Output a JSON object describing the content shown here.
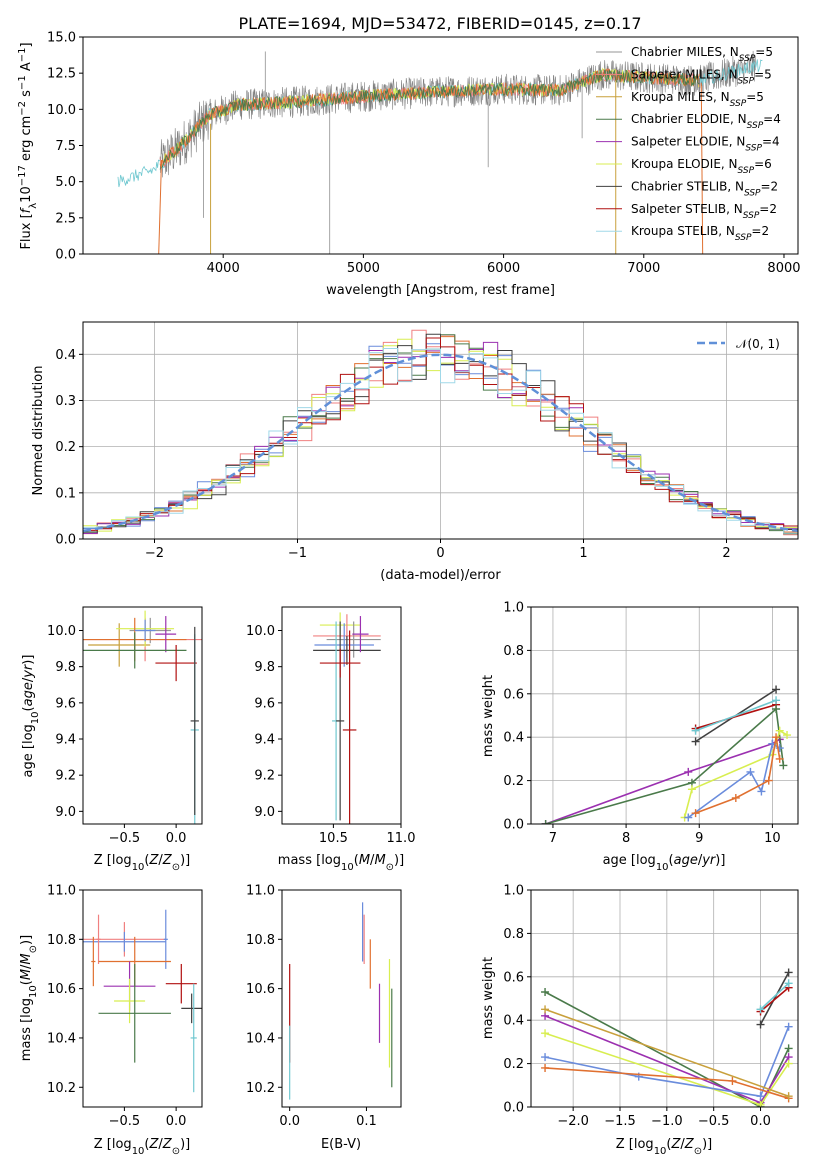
{
  "figure_title": "PLATE=1694, MJD=53472, FIBERID=0145, z=0.17",
  "colors": {
    "Chabrier MILES": "#969696",
    "Salpeter MILES": "#f08080",
    "Kroupa MILES": "#c8a03c",
    "Chabrier ELODIE": "#4a7a4a",
    "Salpeter ELODIE": "#9b30b0",
    "Kroupa ELODIE": "#d8ee50",
    "Chabrier STELIB": "#404040",
    "Salpeter STELIB": "#b01010",
    "Kroupa STELIB": "#a0d8e8",
    "extra_blue": "#6a8cdc",
    "extra_orange": "#e07030",
    "gauss": "#6090d8",
    "data": "#808080",
    "cyan": "#70c8d0"
  },
  "chart_data": [
    {
      "type": "line",
      "xlabel": "wavelength [Angstrom, rest frame]",
      "ylabel": "Flux [f_λ10^-17 erg cm^-2 s^-1 A^-1]",
      "xlim": [
        3000,
        8100
      ],
      "ylim": [
        0,
        15.0
      ],
      "xticks": [
        "4000",
        "5000",
        "6000",
        "7000",
        "8000"
      ],
      "yticks": [
        "0.0",
        "2.5",
        "5.0",
        "7.5",
        "10.0",
        "12.5",
        "15.0"
      ],
      "legend_position": "right",
      "legend": [
        {
          "name": "Chabrier MILES, N",
          "sub": "SSP",
          "val": "=5"
        },
        {
          "name": "Salpeter MILES, N",
          "sub": "SSP",
          "val": "=5"
        },
        {
          "name": "Kroupa MILES, N",
          "sub": "SSP",
          "val": "=5"
        },
        {
          "name": "Chabrier ELODIE, N",
          "sub": "SSP",
          "val": "=4"
        },
        {
          "name": "Salpeter ELODIE, N",
          "sub": "SSP",
          "val": "=4"
        },
        {
          "name": "Kroupa ELODIE, N",
          "sub": "SSP",
          "val": "=6"
        },
        {
          "name": "Chabrier STELIB, N",
          "sub": "SSP",
          "val": "=2"
        },
        {
          "name": "Salpeter STELIB, N",
          "sub": "SSP",
          "val": "=2"
        },
        {
          "name": "Kroupa STELIB, N",
          "sub": "SSP",
          "val": "=2"
        }
      ],
      "continuum": [
        [
          3250,
          5.0
        ],
        [
          3500,
          5.8
        ],
        [
          3700,
          7.5
        ],
        [
          3900,
          9.6
        ],
        [
          4100,
          10.3
        ],
        [
          4500,
          10.5
        ],
        [
          5000,
          10.9
        ],
        [
          5500,
          11.2
        ],
        [
          6000,
          11.4
        ],
        [
          6400,
          11.3
        ],
        [
          6700,
          12.4
        ],
        [
          7000,
          12.2
        ],
        [
          7400,
          12.0
        ],
        [
          7800,
          13.0
        ]
      ]
    },
    {
      "type": "histogram",
      "xlabel": "(data-model)/error",
      "ylabel": "Normed distribution",
      "xlim": [
        -2.5,
        2.5
      ],
      "ylim": [
        0,
        0.47
      ],
      "xticks": [
        "−2",
        "−1",
        "0",
        "1",
        "2"
      ],
      "yticks": [
        "0.0",
        "0.1",
        "0.2",
        "0.3",
        "0.4"
      ],
      "legend": "N(0,1)",
      "legend_position": "top-right",
      "grid": true
    },
    {
      "type": "scatter",
      "xlabel": "Z [log10(Z/Z⊙)]",
      "ylabel": "age [log10(age/yr)]",
      "xlim": [
        -0.9,
        0.25
      ],
      "ylim": [
        8.93,
        10.13
      ],
      "xticks": [
        "−0.5",
        "0.0"
      ],
      "yticks": [
        "9.0",
        "9.2",
        "9.4",
        "9.6",
        "9.8",
        "10.0"
      ],
      "points": [
        {
          "x": -0.25,
          "y": 10.0,
          "xerr": 0.2,
          "yerr": 0.07,
          "c": "Chabrier MILES"
        },
        {
          "x": -0.3,
          "y": 9.95,
          "xerr": 0.6,
          "yerr": 0.12,
          "c": "Salpeter MILES"
        },
        {
          "x": -0.55,
          "y": 9.92,
          "xerr": 0.3,
          "yerr": 0.12,
          "c": "Kroupa MILES"
        },
        {
          "x": -0.3,
          "y": 10.01,
          "xerr": 0.28,
          "yerr": 0.1,
          "c": "Kroupa ELODIE"
        },
        {
          "x": -0.4,
          "y": 9.95,
          "xerr": 0.5,
          "yerr": 0.12,
          "c": "extra_orange"
        },
        {
          "x": -0.1,
          "y": 9.98,
          "xerr": 0.1,
          "yerr": 0.1,
          "c": "Salpeter ELODIE"
        },
        {
          "x": -0.4,
          "y": 9.89,
          "xerr": 0.5,
          "yerr": 0.1,
          "c": "Chabrier ELODIE"
        },
        {
          "x": 0.0,
          "y": 9.82,
          "xerr": 0.2,
          "yerr": 0.1,
          "c": "Salpeter STELIB"
        },
        {
          "x": 0.18,
          "y": 9.45,
          "xerr": 0.04,
          "yerr": 0.53,
          "c": "cyan"
        },
        {
          "x": 0.18,
          "y": 9.5,
          "xerr": 0.04,
          "yerr": 0.52,
          "c": "Chabrier STELIB"
        },
        {
          "x": -0.3,
          "y": 10.0,
          "xerr": 0.1,
          "yerr": 0.06,
          "c": "extra_blue"
        }
      ]
    },
    {
      "type": "scatter",
      "xlabel": "mass [log10(M/M⊙)]",
      "ylabel": "",
      "xlim": [
        10.12,
        11.0
      ],
      "ylim": [
        8.93,
        10.13
      ],
      "xticks": [
        "10.5",
        "11.0"
      ],
      "yticks": [
        "9.0",
        "9.2",
        "9.4",
        "9.6",
        "9.8",
        "10.0"
      ],
      "points": [
        {
          "x": 10.55,
          "y": 10.03,
          "xerr": 0.15,
          "yerr": 0.07,
          "c": "Kroupa ELODIE"
        },
        {
          "x": 10.6,
          "y": 9.97,
          "xerr": 0.25,
          "yerr": 0.12,
          "c": "Salpeter MILES"
        },
        {
          "x": 10.65,
          "y": 9.95,
          "xerr": 0.2,
          "yerr": 0.1,
          "c": "Chabrier MILES"
        },
        {
          "x": 10.58,
          "y": 9.92,
          "xerr": 0.22,
          "yerr": 0.12,
          "c": "extra_blue"
        },
        {
          "x": 10.6,
          "y": 9.89,
          "xerr": 0.25,
          "yerr": 0.08,
          "c": "Chabrier STELIB"
        },
        {
          "x": 10.52,
          "y": 9.5,
          "xerr": 0.03,
          "yerr": 0.55,
          "c": "cyan"
        },
        {
          "x": 10.55,
          "y": 9.5,
          "xerr": 0.03,
          "yerr": 0.55,
          "c": "Chabrier STELIB"
        },
        {
          "x": 10.62,
          "y": 9.45,
          "xerr": 0.05,
          "yerr": 0.55,
          "c": "Salpeter STELIB"
        },
        {
          "x": 10.55,
          "y": 9.82,
          "xerr": 0.15,
          "yerr": 0.08,
          "c": "Salpeter STELIB"
        },
        {
          "x": 10.7,
          "y": 9.98,
          "xerr": 0.06,
          "yerr": 0.1,
          "c": "Salpeter ELODIE"
        }
      ]
    },
    {
      "type": "line",
      "xlabel": "age [log10(age/yr)]",
      "ylabel": "mass weight",
      "xlim": [
        6.7,
        10.35
      ],
      "ylim": [
        0,
        1.0
      ],
      "xticks": [
        "7",
        "8",
        "9",
        "10"
      ],
      "yticks": [
        "0.0",
        "0.2",
        "0.4",
        "0.6",
        "0.8",
        "1.0"
      ],
      "grid": true,
      "series": [
        {
          "c": "Chabrier STELIB",
          "x": [
            8.95,
            10.05
          ],
          "y": [
            0.38,
            0.62
          ]
        },
        {
          "c": "Salpeter STELIB",
          "x": [
            8.95,
            10.05
          ],
          "y": [
            0.44,
            0.55
          ]
        },
        {
          "c": "cyan",
          "x": [
            8.95,
            10.05
          ],
          "y": [
            0.43,
            0.57
          ]
        },
        {
          "c": "Salpeter ELODIE",
          "x": [
            6.9,
            8.85,
            10.0,
            10.1
          ],
          "y": [
            0.0,
            0.24,
            0.37,
            0.39
          ]
        },
        {
          "c": "Chabrier ELODIE",
          "x": [
            6.9,
            8.9,
            10.05,
            10.15
          ],
          "y": [
            0.0,
            0.19,
            0.53,
            0.27
          ]
        },
        {
          "c": "Kroupa ELODIE",
          "x": [
            8.8,
            8.9,
            10.0,
            10.1,
            10.2
          ],
          "y": [
            0.03,
            0.16,
            0.32,
            0.43,
            0.41
          ]
        },
        {
          "c": "extra_blue",
          "x": [
            8.85,
            9.7,
            9.85,
            10.0,
            10.1
          ],
          "y": [
            0.03,
            0.24,
            0.15,
            0.37,
            0.35
          ]
        },
        {
          "c": "extra_orange",
          "x": [
            8.95,
            9.5,
            9.95,
            10.05,
            10.1
          ],
          "y": [
            0.05,
            0.12,
            0.2,
            0.4,
            0.3
          ]
        }
      ]
    },
    {
      "type": "scatter",
      "xlabel": "Z [log10(Z/Z⊙)]",
      "ylabel": "mass [log10(M/M⊙)]",
      "xlim": [
        -0.9,
        0.25
      ],
      "ylim": [
        10.12,
        11.0
      ],
      "xticks": [
        "−0.5",
        "0.0"
      ],
      "yticks": [
        "10.2",
        "10.4",
        "10.6",
        "10.8",
        "11.0"
      ],
      "points": [
        {
          "x": -0.5,
          "y": 10.8,
          "xerr": 0.4,
          "yerr": 0.07,
          "c": "Salpeter MILES"
        },
        {
          "x": -0.5,
          "y": 10.79,
          "xerr": 0.4,
          "yerr": 0.04,
          "c": "extra_blue"
        },
        {
          "x": -0.1,
          "y": 10.8,
          "xerr": 0.02,
          "yerr": 0.12,
          "c": "extra_blue"
        },
        {
          "x": -0.75,
          "y": 10.8,
          "xerr": 0.02,
          "yerr": 0.1,
          "c": "Salpeter MILES"
        },
        {
          "x": -0.8,
          "y": 10.71,
          "xerr": 0.02,
          "yerr": 0.1,
          "c": "extra_orange"
        },
        {
          "x": -0.4,
          "y": 10.71,
          "xerr": 0.35,
          "yerr": 0.1,
          "c": "extra_orange"
        },
        {
          "x": -0.45,
          "y": 10.61,
          "xerr": 0.25,
          "yerr": 0.1,
          "c": "Salpeter ELODIE"
        },
        {
          "x": -0.45,
          "y": 10.55,
          "xerr": 0.15,
          "yerr": 0.09,
          "c": "Kroupa ELODIE"
        },
        {
          "x": -0.4,
          "y": 10.5,
          "xerr": 0.35,
          "yerr": 0.2,
          "c": "Chabrier ELODIE"
        },
        {
          "x": 0.05,
          "y": 10.62,
          "xerr": 0.15,
          "yerr": 0.08,
          "c": "Salpeter STELIB"
        },
        {
          "x": 0.15,
          "y": 10.52,
          "xerr": 0.1,
          "yerr": 0.06,
          "c": "Chabrier STELIB"
        },
        {
          "x": 0.17,
          "y": 10.4,
          "xerr": 0.03,
          "yerr": 0.22,
          "c": "cyan"
        }
      ]
    },
    {
      "type": "scatter",
      "xlabel": "E(B-V)",
      "ylabel": "",
      "xlim": [
        -0.01,
        0.145
      ],
      "ylim": [
        10.12,
        11.0
      ],
      "xticks": [
        "0.0",
        "0.1"
      ],
      "yticks": [
        "10.2",
        "10.4",
        "10.6",
        "10.8",
        "11.0"
      ],
      "points": [
        {
          "x": 0.0,
          "y": 10.5,
          "xerr": 0.0,
          "yerr": 0.2,
          "c": "Salpeter STELIB"
        },
        {
          "x": 0.0,
          "y": 10.3,
          "xerr": 0.0,
          "yerr": 0.15,
          "c": "cyan"
        },
        {
          "x": 0.095,
          "y": 10.83,
          "xerr": 0.0,
          "yerr": 0.12,
          "c": "extra_blue"
        },
        {
          "x": 0.097,
          "y": 10.8,
          "xerr": 0.0,
          "yerr": 0.1,
          "c": "Salpeter MILES"
        },
        {
          "x": 0.105,
          "y": 10.7,
          "xerr": 0.0,
          "yerr": 0.1,
          "c": "extra_orange"
        },
        {
          "x": 0.117,
          "y": 10.5,
          "xerr": 0.0,
          "yerr": 0.12,
          "c": "Salpeter ELODIE"
        },
        {
          "x": 0.13,
          "y": 10.5,
          "xerr": 0.0,
          "yerr": 0.22,
          "c": "Kroupa ELODIE"
        },
        {
          "x": 0.133,
          "y": 10.4,
          "xerr": 0.0,
          "yerr": 0.2,
          "c": "Chabrier ELODIE"
        }
      ]
    },
    {
      "type": "line",
      "xlabel": "Z [log10(Z/Z⊙)]",
      "ylabel": "mass weight",
      "xlim": [
        -2.45,
        0.4
      ],
      "ylim": [
        0,
        1.0
      ],
      "xticks": [
        "−2.0",
        "−1.5",
        "−1.0",
        "−0.5",
        "0.0"
      ],
      "yticks": [
        "0.0",
        "0.2",
        "0.4",
        "0.6",
        "0.8",
        "1.0"
      ],
      "grid": true,
      "series": [
        {
          "c": "Chabrier STELIB",
          "x": [
            0.0,
            0.3
          ],
          "y": [
            0.38,
            0.62
          ]
        },
        {
          "c": "Salpeter STELIB",
          "x": [
            0.0,
            0.3
          ],
          "y": [
            0.44,
            0.55
          ]
        },
        {
          "c": "cyan",
          "x": [
            0.0,
            0.3
          ],
          "y": [
            0.45,
            0.57
          ]
        },
        {
          "c": "Chabrier ELODIE",
          "x": [
            -2.3,
            0.0,
            0.3
          ],
          "y": [
            0.53,
            0.0,
            0.27
          ]
        },
        {
          "c": "Salpeter ELODIE",
          "x": [
            -2.3,
            0.0,
            0.3
          ],
          "y": [
            0.42,
            0.02,
            0.23
          ]
        },
        {
          "c": "Kroupa ELODIE",
          "x": [
            -2.3,
            0.0,
            0.3
          ],
          "y": [
            0.34,
            0.01,
            0.2
          ]
        },
        {
          "c": "extra_blue",
          "x": [
            -2.3,
            -1.3,
            0.0,
            0.3
          ],
          "y": [
            0.23,
            0.14,
            0.05,
            0.37
          ]
        },
        {
          "c": "extra_orange",
          "x": [
            -2.3,
            -0.3,
            0.3
          ],
          "y": [
            0.18,
            0.12,
            0.04
          ]
        },
        {
          "c": "Kroupa MILES",
          "x": [
            -2.3,
            0.3
          ],
          "y": [
            0.45,
            0.05
          ]
        }
      ]
    }
  ]
}
